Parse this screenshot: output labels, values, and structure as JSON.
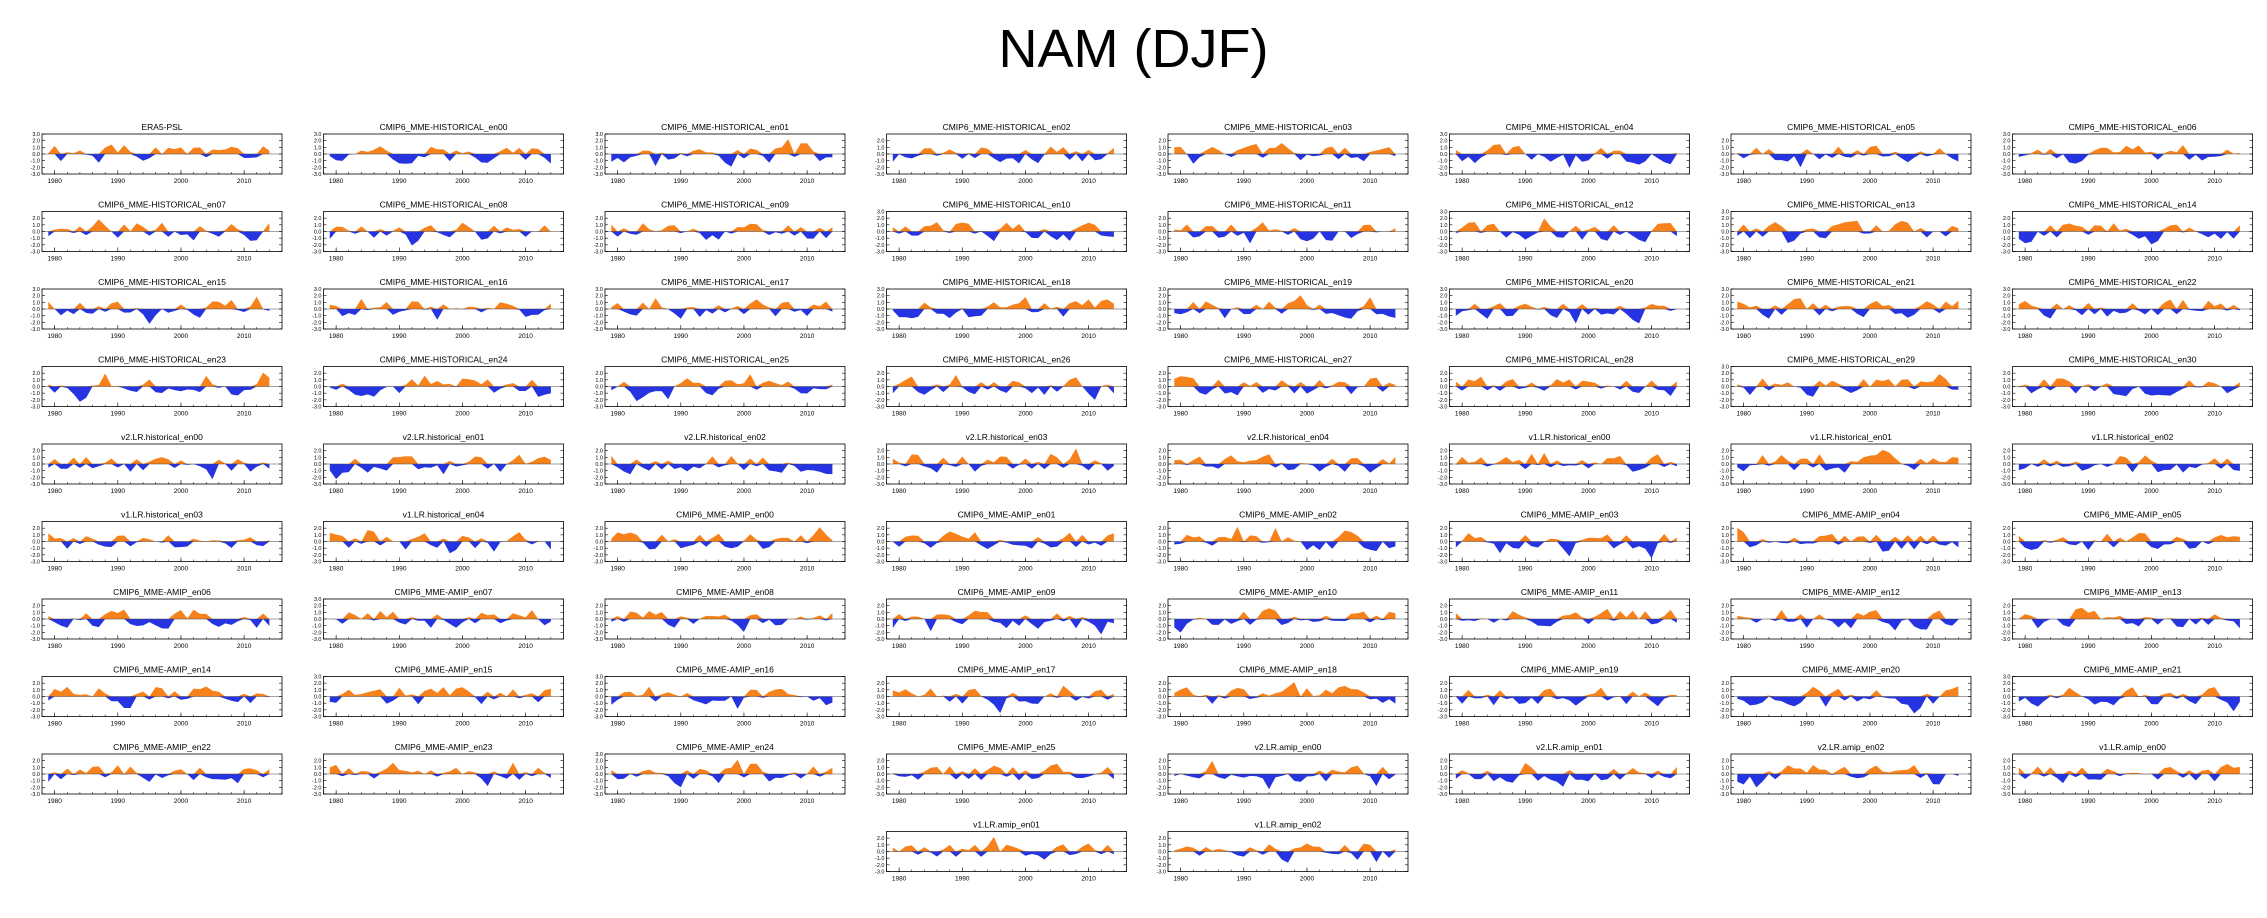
{
  "title": "NAM (DJF)",
  "chart_data": {
    "type": "area",
    "title": "NAM (DJF)",
    "colors": {
      "positive": "#f7821b",
      "negative": "#2533e0",
      "axis": "#000000"
    },
    "xlim": [
      1978,
      2016
    ],
    "ylim": [
      -3.0,
      3.0
    ],
    "x_ticks": [
      "1980",
      "1990",
      "2000",
      "2010"
    ],
    "y_tick_sets": {
      "a": [
        "3.0",
        "2.0",
        "1.0",
        "0.0",
        "-1.0",
        "-2.0",
        "-3.0"
      ],
      "b": [
        "2.0",
        "1.0",
        "0.0",
        "-1.0",
        "-2.0",
        "-3.0"
      ]
    },
    "years": [
      1979,
      2014
    ],
    "panels": [
      {
        "name": "ERA5-PSL",
        "yt": "a",
        "seed": 1
      },
      {
        "name": "CMIP6_MME-HISTORICAL_en00",
        "yt": "a",
        "seed": 2
      },
      {
        "name": "CMIP6_MME-HISTORICAL_en01",
        "yt": "a",
        "seed": 3
      },
      {
        "name": "CMIP6_MME-HISTORICAL_en02",
        "yt": "b",
        "seed": 4
      },
      {
        "name": "CMIP6_MME-HISTORICAL_en03",
        "yt": "b",
        "seed": 5
      },
      {
        "name": "CMIP6_MME-HISTORICAL_en04",
        "yt": "a",
        "seed": 6
      },
      {
        "name": "CMIP6_MME-HISTORICAL_en05",
        "yt": "b",
        "seed": 7
      },
      {
        "name": "CMIP6_MME-HISTORICAL_en06",
        "yt": "a",
        "seed": 8
      },
      {
        "name": "CMIP6_MME-HISTORICAL_en07",
        "yt": "b",
        "seed": 9
      },
      {
        "name": "CMIP6_MME-HISTORICAL_en08",
        "yt": "b",
        "seed": 10
      },
      {
        "name": "CMIP6_MME-HISTORICAL_en09",
        "yt": "b",
        "seed": 11
      },
      {
        "name": "CMIP6_MME-HISTORICAL_en10",
        "yt": "a",
        "seed": 12
      },
      {
        "name": "CMIP6_MME-HISTORICAL_en11",
        "yt": "b",
        "seed": 13
      },
      {
        "name": "CMIP6_MME-HISTORICAL_en12",
        "yt": "a",
        "seed": 14
      },
      {
        "name": "CMIP6_MME-HISTORICAL_en13",
        "yt": "a",
        "seed": 15
      },
      {
        "name": "CMIP6_MME-HISTORICAL_en14",
        "yt": "b",
        "seed": 16
      },
      {
        "name": "CMIP6_MME-HISTORICAL_en15",
        "yt": "a",
        "seed": 17
      },
      {
        "name": "CMIP6_MME-HISTORICAL_en16",
        "yt": "a",
        "seed": 18
      },
      {
        "name": "CMIP6_MME-HISTORICAL_en17",
        "yt": "a",
        "seed": 19
      },
      {
        "name": "CMIP6_MME-HISTORICAL_en18",
        "yt": "a",
        "seed": 20
      },
      {
        "name": "CMIP6_MME-HISTORICAL_en19",
        "yt": "a",
        "seed": 21
      },
      {
        "name": "CMIP6_MME-HISTORICAL_en20",
        "yt": "a",
        "seed": 22
      },
      {
        "name": "CMIP6_MME-HISTORICAL_en21",
        "yt": "a",
        "seed": 23
      },
      {
        "name": "CMIP6_MME-HISTORICAL_en22",
        "yt": "a",
        "seed": 24
      },
      {
        "name": "CMIP6_MME-HISTORICAL_en23",
        "yt": "b",
        "seed": 25
      },
      {
        "name": "CMIP6_MME-HISTORICAL_en24",
        "yt": "b",
        "seed": 26
      },
      {
        "name": "CMIP6_MME-HISTORICAL_en25",
        "yt": "b",
        "seed": 27
      },
      {
        "name": "CMIP6_MME-HISTORICAL_en26",
        "yt": "b",
        "seed": 28
      },
      {
        "name": "CMIP6_MME-HISTORICAL_en27",
        "yt": "b",
        "seed": 29
      },
      {
        "name": "CMIP6_MME-HISTORICAL_en28",
        "yt": "b",
        "seed": 30
      },
      {
        "name": "CMIP6_MME-HISTORICAL_en29",
        "yt": "a",
        "seed": 31
      },
      {
        "name": "CMIP6_MME-HISTORICAL_en30",
        "yt": "b",
        "seed": 32
      },
      {
        "name": "v2.LR.historical_en00",
        "yt": "b",
        "seed": 33
      },
      {
        "name": "v2.LR.historical_en01",
        "yt": "b",
        "seed": 34
      },
      {
        "name": "v2.LR.historical_en02",
        "yt": "b",
        "seed": 35
      },
      {
        "name": "v2.LR.historical_en03",
        "yt": "b",
        "seed": 36
      },
      {
        "name": "v2.LR.historical_en04",
        "yt": "b",
        "seed": 37
      },
      {
        "name": "v1.LR.historical_en00",
        "yt": "b",
        "seed": 38
      },
      {
        "name": "v1.LR.historical_en01",
        "yt": "b",
        "seed": 39
      },
      {
        "name": "v1.LR.historical_en02",
        "yt": "b",
        "seed": 40
      },
      {
        "name": "v1.LR.historical_en03",
        "yt": "b",
        "seed": 41
      },
      {
        "name": "v1.LR.historical_en04",
        "yt": "b",
        "seed": 42
      },
      {
        "name": "CMIP6_MME-AMIP_en00",
        "yt": "b",
        "seed": 43
      },
      {
        "name": "CMIP6_MME-AMIP_en01",
        "yt": "b",
        "seed": 44
      },
      {
        "name": "CMIP6_MME-AMIP_en02",
        "yt": "b",
        "seed": 45
      },
      {
        "name": "CMIP6_MME-AMIP_en03",
        "yt": "b",
        "seed": 46
      },
      {
        "name": "CMIP6_MME-AMIP_en04",
        "yt": "b",
        "seed": 47
      },
      {
        "name": "CMIP6_MME-AMIP_en05",
        "yt": "b",
        "seed": 48
      },
      {
        "name": "CMIP6_MME-AMIP_en06",
        "yt": "b",
        "seed": 49
      },
      {
        "name": "CMIP6_MME-AMIP_en07",
        "yt": "a",
        "seed": 50
      },
      {
        "name": "CMIP6_MME-AMIP_en08",
        "yt": "b",
        "seed": 51
      },
      {
        "name": "CMIP6_MME-AMIP_en09",
        "yt": "b",
        "seed": 52
      },
      {
        "name": "CMIP6_MME-AMIP_en10",
        "yt": "b",
        "seed": 53
      },
      {
        "name": "CMIP6_MME-AMIP_en11",
        "yt": "b",
        "seed": 54
      },
      {
        "name": "CMIP6_MME-AMIP_en12",
        "yt": "b",
        "seed": 55
      },
      {
        "name": "CMIP6_MME-AMIP_en13",
        "yt": "b",
        "seed": 56
      },
      {
        "name": "CMIP6_MME-AMIP_en14",
        "yt": "b",
        "seed": 57
      },
      {
        "name": "CMIP6_MME-AMIP_en15",
        "yt": "a",
        "seed": 58
      },
      {
        "name": "CMIP6_MME-AMIP_en16",
        "yt": "a",
        "seed": 59
      },
      {
        "name": "CMIP6_MME-AMIP_en17",
        "yt": "b",
        "seed": 60
      },
      {
        "name": "CMIP6_MME-AMIP_en18",
        "yt": "b",
        "seed": 61
      },
      {
        "name": "CMIP6_MME-AMIP_en19",
        "yt": "b",
        "seed": 62
      },
      {
        "name": "CMIP6_MME-AMIP_en20",
        "yt": "b",
        "seed": 63
      },
      {
        "name": "CMIP6_MME-AMIP_en21",
        "yt": "a",
        "seed": 64
      },
      {
        "name": "CMIP6_MME-AMIP_en22",
        "yt": "b",
        "seed": 65
      },
      {
        "name": "CMIP6_MME-AMIP_en23",
        "yt": "b",
        "seed": 66
      },
      {
        "name": "CMIP6_MME-AMIP_en24",
        "yt": "a",
        "seed": 67
      },
      {
        "name": "CMIP6_MME-AMIP_en25",
        "yt": "b",
        "seed": 68
      },
      {
        "name": "v2.LR.amip_en00",
        "yt": "b",
        "seed": 69
      },
      {
        "name": "v2.LR.amip_en01",
        "yt": "b",
        "seed": 70
      },
      {
        "name": "v2.LR.amip_en02",
        "yt": "b",
        "seed": 71
      },
      {
        "name": "v1.LR.amip_en00",
        "yt": "b",
        "seed": 72
      },
      {
        "name": "v1.LR.amip_en01",
        "yt": "b",
        "seed": 73
      },
      {
        "name": "v1.LR.amip_en02",
        "yt": "b",
        "seed": 74
      }
    ]
  }
}
